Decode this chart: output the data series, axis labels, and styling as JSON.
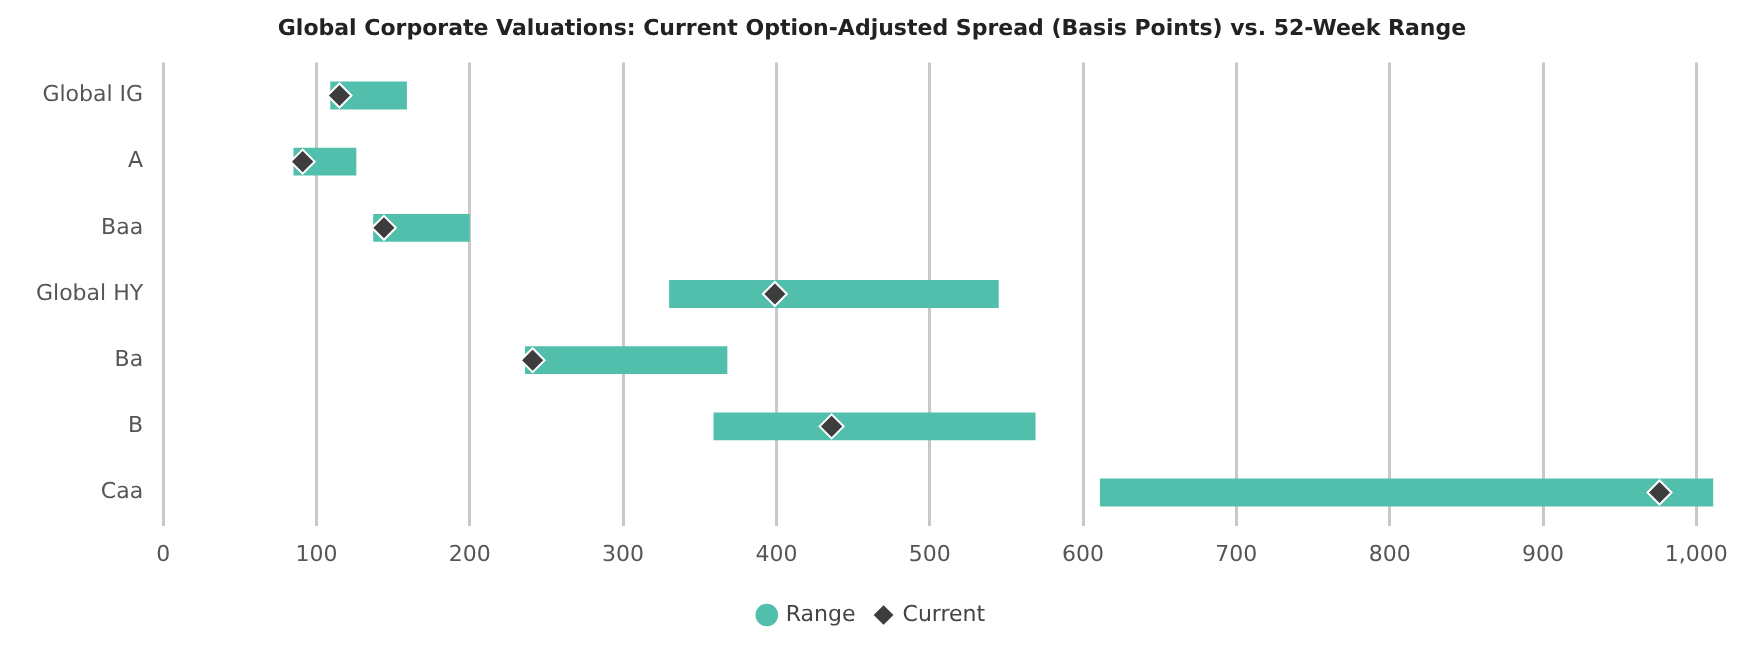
{
  "chart_data": {
    "type": "bar",
    "orientation": "horizontal",
    "title": "Global Corporate Valuations: Current Option-Adjusted Spread (Basis Points) vs. 52-Week Range",
    "categories": [
      "Global IG",
      "A",
      "Baa",
      "Global HY",
      "Ba",
      "B",
      "Caa"
    ],
    "series": [
      {
        "name": "Range",
        "color": "#52bfad",
        "base": [
          109,
          85,
          137,
          330,
          236,
          359,
          611
        ],
        "values": [
          50,
          41,
          63,
          215,
          132,
          210,
          400
        ]
      },
      {
        "name": "Current",
        "type": "scatter",
        "marker": "diamond",
        "color": "#3d3d3d",
        "values": [
          115,
          91,
          144,
          399,
          241,
          436,
          976
        ]
      }
    ],
    "xlim": [
      0,
      1012
    ],
    "xticks": [
      0,
      100,
      200,
      300,
      400,
      500,
      600,
      700,
      800,
      900,
      {
        "value": 1000,
        "label": "1,000"
      }
    ],
    "grid": "x",
    "legend": "bottom"
  }
}
